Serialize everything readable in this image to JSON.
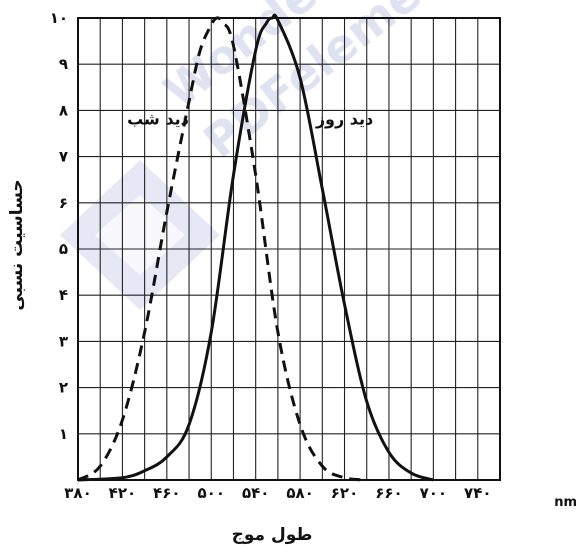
{
  "chart_data": {
    "type": "line",
    "xlabel": "طول موج",
    "ylabel": "حساسیت نسبی",
    "x_unit": "nm",
    "xlim": [
      380,
      760
    ],
    "ylim": [
      0,
      1.0
    ],
    "x_ticks": [
      380,
      420,
      460,
      500,
      540,
      580,
      620,
      660,
      700,
      740
    ],
    "x_tick_labels": [
      "۳۸۰",
      "۴۲۰",
      "۴۶۰",
      "۵۰۰",
      "۵۴۰",
      "۵۸۰",
      "۶۲۰",
      "۶۶۰",
      "۷۰۰",
      "۷۴۰"
    ],
    "y_ticks": [
      0.1,
      0.2,
      0.3,
      0.4,
      0.5,
      0.6,
      0.7,
      0.8,
      0.9,
      1.0
    ],
    "y_tick_labels": [
      "۱",
      "۲",
      "۳",
      "۴",
      "۵",
      "۶",
      "۷",
      "۸",
      "۹",
      "۱۰"
    ],
    "grid": true,
    "series": [
      {
        "name": "دید شب",
        "style": "dashed",
        "color": "#111111",
        "x": [
          380,
          400,
          420,
          440,
          460,
          480,
          490,
          500,
          505,
          510,
          520,
          540,
          560,
          580,
          600,
          620,
          640
        ],
        "y": [
          0.0,
          0.03,
          0.13,
          0.32,
          0.58,
          0.82,
          0.93,
          0.985,
          1.0,
          0.99,
          0.94,
          0.66,
          0.32,
          0.12,
          0.03,
          0.005,
          0.0
        ]
      },
      {
        "name": "دید روز",
        "style": "solid",
        "color": "#111111",
        "x": [
          380,
          420,
          440,
          460,
          480,
          500,
          520,
          540,
          550,
          555,
          560,
          580,
          600,
          620,
          640,
          660,
          680,
          700
        ],
        "y": [
          0.0,
          0.005,
          0.02,
          0.05,
          0.12,
          0.32,
          0.66,
          0.93,
          0.99,
          1.0,
          0.995,
          0.87,
          0.63,
          0.38,
          0.17,
          0.06,
          0.015,
          0.0
        ]
      }
    ],
    "annotations": [
      {
        "text": "دید شب",
        "x": 452,
        "y": 0.77
      },
      {
        "text": "دید روز",
        "x": 620,
        "y": 0.77
      }
    ]
  },
  "watermark": {
    "lines": [
      "Wonder",
      "PDFelement"
    ],
    "color": "#c6cbe6"
  }
}
